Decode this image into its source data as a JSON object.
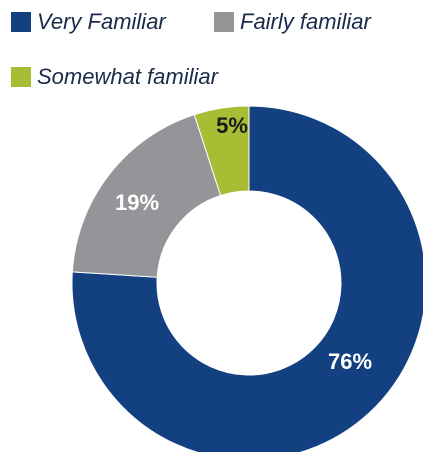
{
  "chart_data": {
    "type": "pie",
    "donut": true,
    "title": "",
    "categories": [
      "Very Familiar",
      "Fairly familiar",
      "Somewhat familiar"
    ],
    "values": [
      76,
      19,
      5
    ],
    "value_labels": [
      "76%",
      "19%",
      "5%"
    ],
    "colors": [
      "#124080",
      "#939598",
      "#a8bd34"
    ],
    "label_colors": [
      "#ffffff",
      "#ffffff",
      "#1a1a1a"
    ],
    "legend_position": "top"
  },
  "legend": {
    "items": [
      {
        "label": "Very Familiar",
        "color": "#124080"
      },
      {
        "label": "Fairly familiar",
        "color": "#939598"
      },
      {
        "label": "Somewhat familiar",
        "color": "#a8bd34"
      }
    ]
  }
}
